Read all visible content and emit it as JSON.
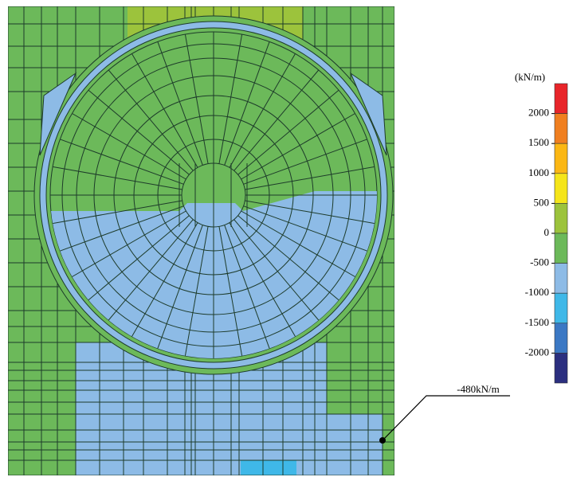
{
  "colorbar": {
    "unit": "(kN/m)",
    "ticks": [
      2000,
      1500,
      1000,
      500,
      0,
      -500,
      -1000,
      -1500,
      -2000
    ],
    "colors": [
      "#e8252a",
      "#f07f20",
      "#fbb714",
      "#f5e51a",
      "#9cc33c",
      "#6cb95a",
      "#8dbbe6",
      "#3fb8e8",
      "#3b78c4",
      "#2b2f7f"
    ]
  },
  "annotation": {
    "label": "-480kN/m"
  }
}
